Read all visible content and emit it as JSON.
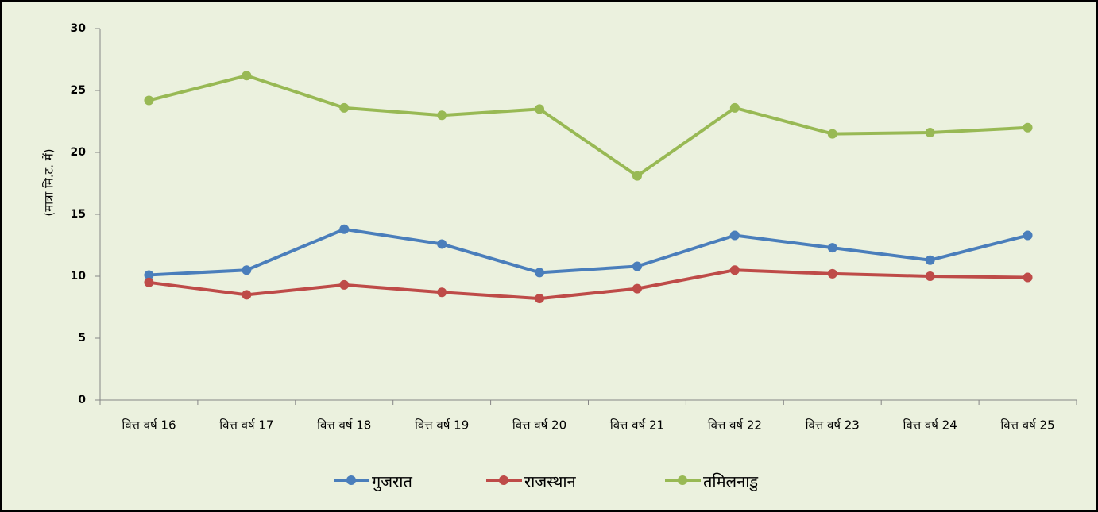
{
  "chart_data": {
    "type": "line",
    "y_label": "(मात्रा मि.ट. में)",
    "categories": [
      "वित्त वर्ष 16",
      "वित्त वर्ष 17",
      "वित्त वर्ष 18",
      "वित्त वर्ष 19",
      "वित्त वर्ष 20",
      "वित्त वर्ष 21",
      "वित्त वर्ष 22",
      "वित्त वर्ष 23",
      "वित्त वर्ष 24",
      "वित्त वर्ष 25"
    ],
    "series": [
      {
        "name": "गुजरात",
        "color": "#4a7ebb",
        "values": [
          10.1,
          10.5,
          13.8,
          12.6,
          10.3,
          10.8,
          13.3,
          12.3,
          11.3,
          13.3
        ]
      },
      {
        "name": "राजस्थान",
        "color": "#be4b48",
        "values": [
          9.5,
          8.5,
          9.3,
          8.7,
          8.2,
          9.0,
          10.5,
          10.2,
          10.0,
          9.9
        ]
      },
      {
        "name": "तमिलनाडु",
        "color": "#98b954",
        "values": [
          24.2,
          26.2,
          23.6,
          23.0,
          23.5,
          18.1,
          23.6,
          21.5,
          21.6,
          22.0
        ]
      }
    ],
    "ylim": [
      0,
      30
    ],
    "yticks": [
      0,
      5,
      10,
      15,
      20,
      25,
      30
    ],
    "grid": false,
    "legend": "bottom"
  }
}
